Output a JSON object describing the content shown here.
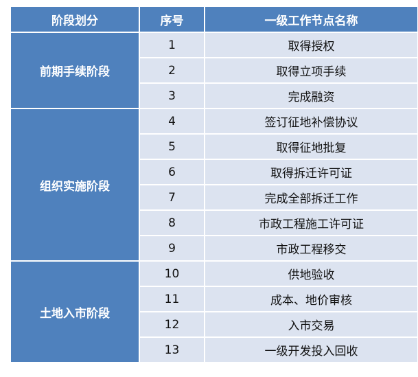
{
  "table": {
    "header": [
      "阶段划分",
      "序号",
      "一级工作节点名称"
    ],
    "groups": [
      {
        "name": "前期手续阶段",
        "rows": [
          [
            "1",
            "取得授权"
          ],
          [
            "2",
            "取得立项手续"
          ],
          [
            "3",
            "完成融资"
          ]
        ]
      },
      {
        "name": "组织实施阶段",
        "rows": [
          [
            "4",
            "签订征地补偿协议"
          ],
          [
            "5",
            "取得征地批复"
          ],
          [
            "6",
            "取得拆迁许可证"
          ],
          [
            "7",
            "完成全部拆迁工作"
          ],
          [
            "8",
            "市政工程施工许可证"
          ],
          [
            "9",
            "市政工程移交"
          ]
        ]
      },
      {
        "name": "土地入市阶段",
        "rows": [
          [
            "10",
            "供地验收"
          ],
          [
            "11",
            "成本、地价审核"
          ],
          [
            "12",
            "入市交易"
          ],
          [
            "13",
            "一级开发投入回收"
          ]
        ]
      }
    ]
  }
}
